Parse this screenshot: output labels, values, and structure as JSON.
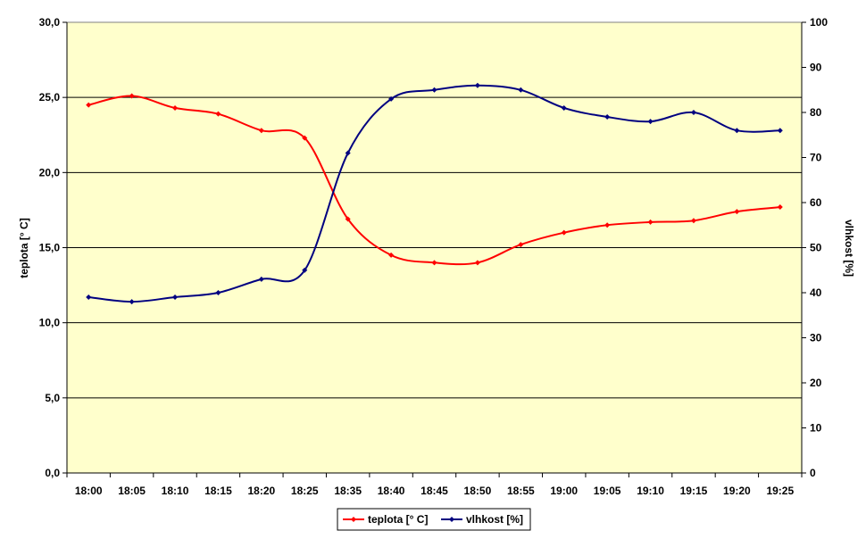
{
  "chart_data": {
    "type": "line",
    "xlabel": "",
    "categories": [
      "18:00",
      "18:05",
      "18:10",
      "18:15",
      "18:20",
      "18:25",
      "18:35",
      "18:40",
      "18:45",
      "18:50",
      "18:55",
      "19:00",
      "19:05",
      "19:10",
      "19:15",
      "19:20",
      "19:25"
    ],
    "y_left": {
      "label": "teplota [° C]",
      "range": [
        0,
        30
      ],
      "ticks": [
        "0,0",
        "5,0",
        "10,0",
        "15,0",
        "20,0",
        "25,0",
        "30,0"
      ]
    },
    "y_right": {
      "label": "vlhkost [%]",
      "range": [
        0,
        100
      ],
      "ticks": [
        "0",
        "10",
        "20",
        "30",
        "40",
        "50",
        "60",
        "70",
        "80",
        "90",
        "100"
      ]
    },
    "series": [
      {
        "name": "teplota [° C]",
        "axis": "left",
        "color": "#ff0000",
        "values": [
          24.5,
          25.1,
          24.3,
          23.9,
          22.8,
          22.3,
          16.9,
          14.5,
          14.0,
          14.0,
          15.2,
          16.0,
          16.5,
          16.7,
          16.8,
          17.4,
          17.7
        ]
      },
      {
        "name": "vlhkost [%]",
        "axis": "right",
        "color": "#000080",
        "values": [
          39,
          38,
          39,
          40,
          43,
          45,
          71,
          83,
          85,
          86,
          85,
          81,
          79,
          78,
          80,
          76,
          76
        ]
      }
    ],
    "plot_background": "#ffffcc",
    "gridlines": "horizontal",
    "legend_position": "bottom-center"
  }
}
